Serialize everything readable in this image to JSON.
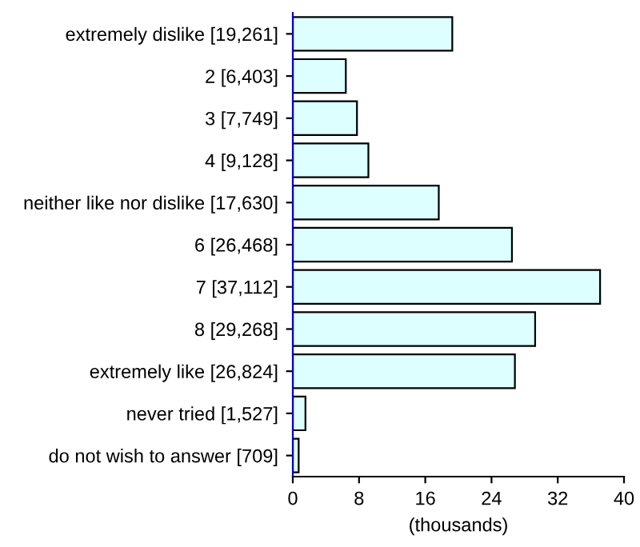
{
  "chart_data": {
    "type": "bar",
    "orientation": "horizontal",
    "categories": [
      "extremely dislike [19,261]",
      "2 [6,403]",
      "3 [7,749]",
      "4 [9,128]",
      "neither like nor dislike [17,630]",
      "6 [26,468]",
      "7 [37,112]",
      "8 [29,268]",
      "extremely like [26,824]",
      "never tried [1,527]",
      "do not wish to answer [709]"
    ],
    "values": [
      19.261,
      6.403,
      7.749,
      9.128,
      17.63,
      26.468,
      37.112,
      29.268,
      26.824,
      1.527,
      0.709
    ],
    "color": "#ddffff",
    "xlim": [
      0,
      40
    ],
    "xticks": [
      0,
      8,
      16,
      24,
      32,
      40
    ],
    "xlabel": "(thousands)",
    "grid": false,
    "legend": false
  }
}
